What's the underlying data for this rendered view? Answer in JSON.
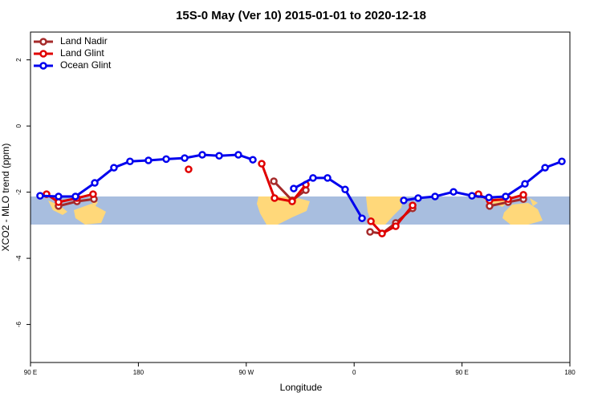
{
  "chart_data": {
    "type": "line",
    "title": "15S-0 May (Ver 10)   2015-01-01 to 2020-12-18",
    "x_label": "Longitude",
    "y_label": "XCO2 - MLO trend (ppm)",
    "xlim": [
      90,
      540
    ],
    "xticks": [
      {
        "value": 90,
        "label": "90 E"
      },
      180,
      {
        "value": 270,
        "label": "90 W"
      },
      {
        "value": 360,
        "label": "0"
      },
      {
        "value": 450,
        "label": "90 E"
      },
      {
        "value": 540,
        "label": "180"
      }
    ],
    "ylim": [
      -7.15,
      2.84
    ],
    "yticks": [
      2,
      0,
      -2,
      -4,
      -6
    ],
    "legend": "top-left",
    "series": [
      {
        "name": "Land Nadir",
        "color": "#a52a2a",
        "x": [
          113.4,
          128.8,
          142.9,
          null,
          293,
          308.3,
          319.7,
          null,
          373.3,
          383.3,
          394.7,
          408.8,
          null,
          473,
          488.5,
          501.2
        ],
        "values": [
          -2.42,
          -2.28,
          -2.21,
          null,
          -1.67,
          -2.25,
          -1.94,
          null,
          -3.2,
          -3.25,
          -2.93,
          -2.49,
          null,
          -2.42,
          -2.3,
          -2.21
        ]
      },
      {
        "name": "Land Glint",
        "color": "#e00000",
        "x": [
          103.4,
          113.4,
          128.8,
          142.2,
          null,
          221.9,
          null,
          282.9,
          293.6,
          308.3,
          319.7,
          null,
          374,
          383.3,
          394.7,
          408.8,
          null,
          463.7,
          473,
          488.5,
          501.2
        ],
        "values": [
          -2.06,
          -2.3,
          -2.18,
          -2.06,
          null,
          -1.31,
          null,
          -1.14,
          -2.18,
          -2.28,
          -1.77,
          null,
          -2.88,
          -3.25,
          -3.03,
          -2.4,
          null,
          -2.06,
          -2.25,
          -2.21,
          -2.08
        ]
      },
      {
        "name": "Ocean Glint",
        "color": "#0000ee",
        "x": [
          98,
          113.4,
          127.5,
          143.6,
          159.6,
          173,
          188.4,
          203.2,
          218.6,
          233.3,
          247.4,
          263.4,
          275.5,
          null,
          309.6,
          325.7,
          337.8,
          352.5,
          366.6,
          null,
          401.4,
          413.4,
          427.5,
          442.9,
          458.3,
          472.4,
          486.4,
          502.5,
          519.3,
          533.3
        ],
        "values": [
          -2.11,
          -2.13,
          -2.13,
          -1.72,
          -1.26,
          -1.07,
          -1.04,
          -1.0,
          -0.97,
          -0.87,
          -0.9,
          -0.87,
          -1.02,
          null,
          -1.89,
          -1.57,
          -1.57,
          -1.92,
          -2.79,
          null,
          -2.25,
          -2.18,
          -2.13,
          -1.99,
          -2.11,
          -2.16,
          -2.13,
          -1.75,
          -1.26,
          -1.07
        ]
      }
    ]
  }
}
